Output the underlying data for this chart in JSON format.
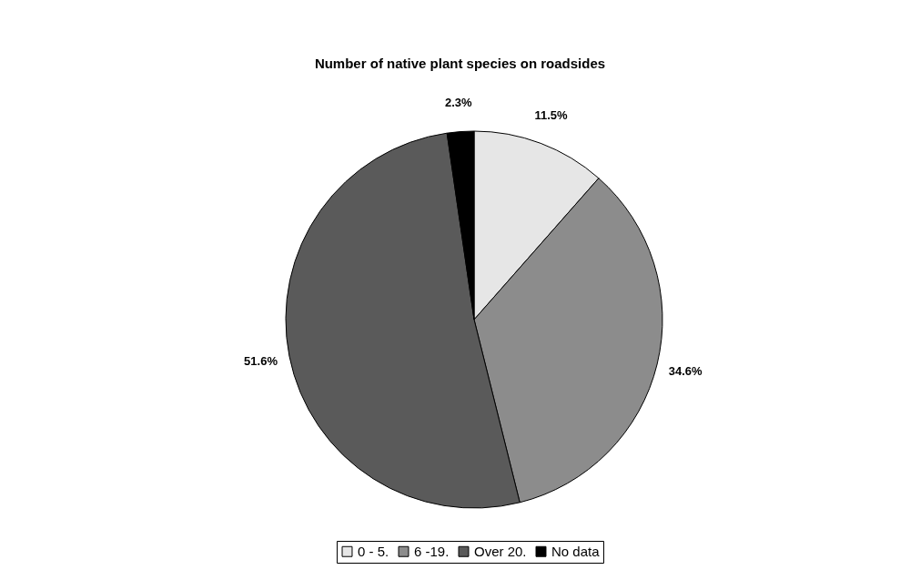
{
  "chart_data": {
    "type": "pie",
    "title": "Number of native plant species on roadsides",
    "categories": [
      "0 - 5.",
      "6 -19.",
      "Over 20.",
      "No data"
    ],
    "values": [
      11.5,
      34.6,
      51.6,
      2.3
    ],
    "value_labels": [
      "11.5%",
      "34.6%",
      "51.6%",
      "2.3%"
    ],
    "colors": [
      "#e6e6e6",
      "#8c8c8c",
      "#5a5a5a",
      "#000000"
    ],
    "legend": "bottom"
  }
}
